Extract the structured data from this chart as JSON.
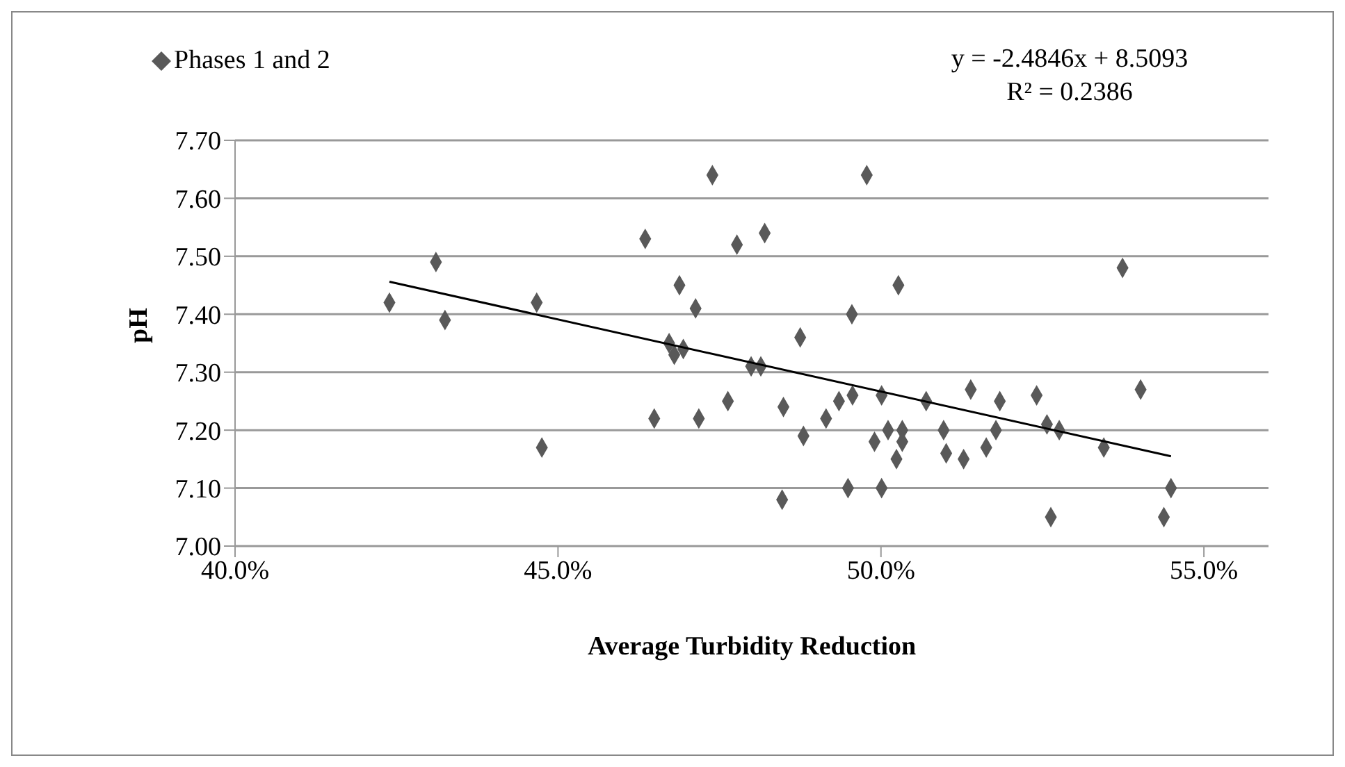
{
  "chart_data": {
    "type": "scatter",
    "xlabel": "Average Turbidity Reduction",
    "ylabel": "pH",
    "xlim": [
      0.4,
      0.56
    ],
    "xticks": [
      {
        "value": 0.4,
        "label": "40.0%"
      },
      {
        "value": 0.45,
        "label": "45.0%"
      },
      {
        "value": 0.5,
        "label": "50.0%"
      },
      {
        "value": 0.55,
        "label": "55.0%"
      }
    ],
    "ylim": [
      7.0,
      7.7
    ],
    "yticks": [
      {
        "value": 7.0,
        "label": "7.00"
      },
      {
        "value": 7.1,
        "label": "7.10"
      },
      {
        "value": 7.2,
        "label": "7.20"
      },
      {
        "value": 7.3,
        "label": "7.30"
      },
      {
        "value": 7.4,
        "label": "7.40"
      },
      {
        "value": 7.5,
        "label": "7.50"
      },
      {
        "value": 7.6,
        "label": "7.60"
      },
      {
        "value": 7.7,
        "label": "7.70"
      }
    ],
    "grid": "y",
    "legend": "top left",
    "marker": "diamond",
    "annotations": [
      "y = -2.4846x + 8.5093",
      "R² = 0.2386"
    ],
    "series": [
      {
        "name": "Phases 1 and 2",
        "color": "#595959",
        "x": [
          0.4239,
          0.4311,
          0.4325,
          0.4467,
          0.4475,
          0.4635,
          0.4649,
          0.4688,
          0.4713,
          0.4672,
          0.4694,
          0.468,
          0.4718,
          0.4739,
          0.4777,
          0.482,
          0.4763,
          0.4799,
          0.4814,
          0.4849,
          0.4847,
          0.4875,
          0.488,
          0.4915,
          0.4935,
          0.4956,
          0.4955,
          0.4978,
          0.4949,
          0.5001,
          0.5001,
          0.499,
          0.5011,
          0.5033,
          0.5033,
          0.5024,
          0.5027,
          0.507,
          0.5097,
          0.5101,
          0.5128,
          0.5139,
          0.5184,
          0.5178,
          0.5163,
          0.5241,
          0.5257,
          0.5276,
          0.5263,
          0.5345,
          0.5374,
          0.5402,
          0.5449,
          0.5438
        ],
        "values": [
          7.42,
          7.49,
          7.39,
          7.42,
          7.17,
          7.53,
          7.22,
          7.45,
          7.41,
          7.35,
          7.34,
          7.33,
          7.22,
          7.64,
          7.52,
          7.54,
          7.25,
          7.31,
          7.31,
          7.24,
          7.08,
          7.36,
          7.19,
          7.22,
          7.25,
          7.26,
          7.4,
          7.64,
          7.1,
          7.26,
          7.1,
          7.18,
          7.2,
          7.2,
          7.18,
          7.15,
          7.45,
          7.25,
          7.2,
          7.16,
          7.15,
          7.27,
          7.25,
          7.2,
          7.17,
          7.26,
          7.21,
          7.2,
          7.05,
          7.17,
          7.48,
          7.27,
          7.1,
          7.05
        ]
      },
      {
        "type": "line",
        "color": "#000000",
        "marker": "none",
        "x": [
          0.4239,
          0.5449
        ],
        "values": [
          7.456,
          7.155
        ]
      }
    ]
  }
}
